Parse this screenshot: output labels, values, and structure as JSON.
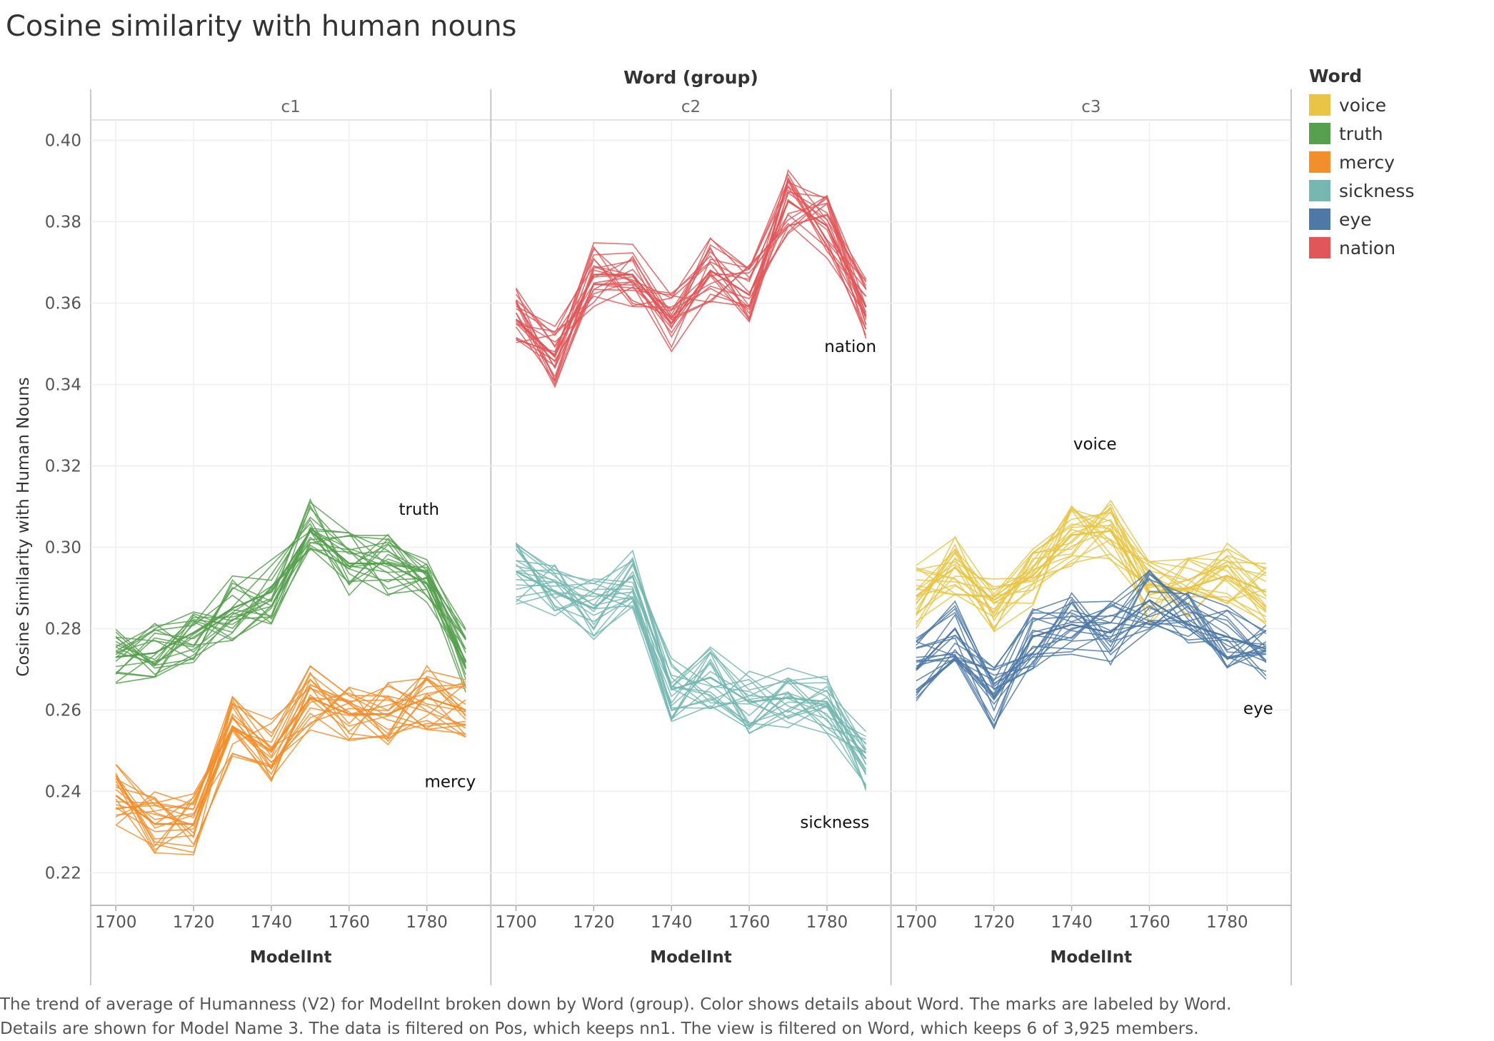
{
  "title": "Cosine similarity with human nouns",
  "caption": "The trend of average of Humanness (V2) for ModelInt broken down by Word (group).  Color shows details about Word.  The marks are labeled by Word.  Details are shown for Model Name 3. The data is filtered on Pos, which keeps nn1. The view is filtered on Word, which keeps 6 of 3,925 members.",
  "legend": {
    "title": "Word",
    "items": [
      {
        "label": "voice",
        "color": "#e8c547"
      },
      {
        "label": "truth",
        "color": "#57a050"
      },
      {
        "label": "mercy",
        "color": "#f28e2b"
      },
      {
        "label": "sickness",
        "color": "#76b7b2"
      },
      {
        "label": "eye",
        "color": "#4e79a7"
      },
      {
        "label": "nation",
        "color": "#e15759"
      }
    ]
  },
  "chart_data": {
    "type": "line",
    "column_header": "Word (group)",
    "panels": [
      "c1",
      "c2",
      "c3"
    ],
    "xlabel": "ModelInt",
    "ylabel": "Cosine Similarity with Human Nouns",
    "x": [
      1700,
      1710,
      1720,
      1730,
      1740,
      1750,
      1760,
      1770,
      1780,
      1790
    ],
    "x_ticks": [
      1700,
      1720,
      1740,
      1760,
      1780
    ],
    "y_ticks": [
      0.22,
      0.24,
      0.26,
      0.28,
      0.3,
      0.32,
      0.34,
      0.36,
      0.38,
      0.4
    ],
    "ylim": [
      0.212,
      0.405
    ],
    "xlim": [
      1695,
      1795
    ],
    "grid": true,
    "legend_position": "right",
    "series": [
      {
        "name": "truth",
        "panel": "c1",
        "color": "#57a050",
        "label": "truth",
        "values": [
          0.273,
          0.274,
          0.279,
          0.285,
          0.289,
          0.304,
          0.296,
          0.296,
          0.291,
          0.272
        ]
      },
      {
        "name": "mercy",
        "panel": "c1",
        "color": "#f28e2b",
        "label": "mercy",
        "values": [
          0.239,
          0.232,
          0.232,
          0.256,
          0.25,
          0.263,
          0.259,
          0.259,
          0.263,
          0.26
        ]
      },
      {
        "name": "nation",
        "panel": "c2",
        "color": "#e15759",
        "label": "nation",
        "values": [
          0.356,
          0.347,
          0.367,
          0.367,
          0.355,
          0.368,
          0.362,
          0.385,
          0.379,
          0.359
        ]
      },
      {
        "name": "sickness",
        "panel": "c2",
        "color": "#76b7b2",
        "label": "sickness",
        "values": [
          0.294,
          0.289,
          0.285,
          0.293,
          0.265,
          0.268,
          0.262,
          0.263,
          0.262,
          0.248
        ]
      },
      {
        "name": "voice",
        "panel": "c3",
        "color": "#e8c547",
        "label": "voice",
        "values": [
          0.288,
          0.295,
          0.287,
          0.293,
          0.303,
          0.304,
          0.289,
          0.29,
          0.293,
          0.289
        ]
      },
      {
        "name": "eye",
        "panel": "c3",
        "color": "#4e79a7",
        "label": "eye",
        "values": [
          0.27,
          0.28,
          0.263,
          0.278,
          0.281,
          0.279,
          0.287,
          0.281,
          0.278,
          0.275
        ]
      }
    ],
    "label_positions": {
      "truth": [
        1778,
        0.308
      ],
      "mercy": [
        1786,
        0.241
      ],
      "nation": [
        1786,
        0.348
      ],
      "sickness": [
        1782,
        0.231
      ],
      "voice": [
        1746,
        0.324
      ],
      "eye": [
        1788,
        0.259
      ]
    }
  }
}
